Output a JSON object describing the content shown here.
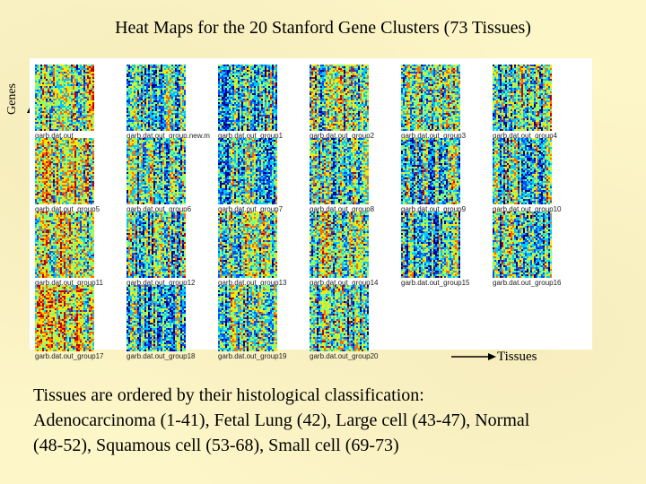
{
  "title": "Heat Maps for the 20 Stanford Gene Clusters  (73 Tissues)",
  "y_axis_label": "Genes",
  "x_axis_label": "Tissues",
  "colormap": [
    "#00008f",
    "#0050ff",
    "#00c8ff",
    "#7fff80",
    "#ffe600",
    "#ff6a00",
    "#c00000"
  ],
  "heatmaps": [
    {
      "label": "garb.dat.out",
      "seed": 11,
      "bias": 0.55
    },
    {
      "label": "garb.dat.out_group.new.m",
      "seed": 23,
      "bias": 0.42
    },
    {
      "label": "garb.dat.out_group1",
      "seed": 37,
      "bias": 0.4
    },
    {
      "label": "garb.dat.out_group2",
      "seed": 41,
      "bias": 0.48
    },
    {
      "label": "garb.dat.out_group3",
      "seed": 53,
      "bias": 0.55
    },
    {
      "label": "garb.dat.out_group4",
      "seed": 67,
      "bias": 0.5
    },
    {
      "label": "garb.dat.out_group5",
      "seed": 71,
      "bias": 0.58
    },
    {
      "label": "garb.dat.out_group6",
      "seed": 83,
      "bias": 0.44
    },
    {
      "label": "garb.dat.out_group7",
      "seed": 97,
      "bias": 0.46
    },
    {
      "label": "garb.dat.out_group8",
      "seed": 101,
      "bias": 0.47
    },
    {
      "label": "garb.dat.out_group9",
      "seed": 113,
      "bias": 0.45
    },
    {
      "label": "garb.dat.out_group10",
      "seed": 127,
      "bias": 0.43
    },
    {
      "label": "garb.dat.out_group11",
      "seed": 131,
      "bias": 0.6
    },
    {
      "label": "garb.dat.out_group12",
      "seed": 149,
      "bias": 0.45
    },
    {
      "label": "garb.dat.out_group13",
      "seed": 151,
      "bias": 0.5
    },
    {
      "label": "garb.dat.out_group14",
      "seed": 163,
      "bias": 0.52
    },
    {
      "label": "garb.dat.out_group15",
      "seed": 173,
      "bias": 0.4
    },
    {
      "label": "garb.dat.out_group16",
      "seed": 181,
      "bias": 0.44
    },
    {
      "label": "garb.dat.out_group17",
      "seed": 191,
      "bias": 0.66
    },
    {
      "label": "garb.dat.out_group18",
      "seed": 197,
      "bias": 0.38
    },
    {
      "label": "garb.dat.out_group19",
      "seed": 211,
      "bias": 0.47
    },
    {
      "label": "garb.dat.out_group20",
      "seed": 223,
      "bias": 0.45
    }
  ],
  "caption": {
    "line1": "Tissues are ordered by their histological classification:",
    "line2": "Adenocarcinoma (1-41), Fetal Lung (42), Large cell (43-47), Normal",
    "line3": "(48-52), Squamous cell (53-68), Small cell (69-73)"
  }
}
